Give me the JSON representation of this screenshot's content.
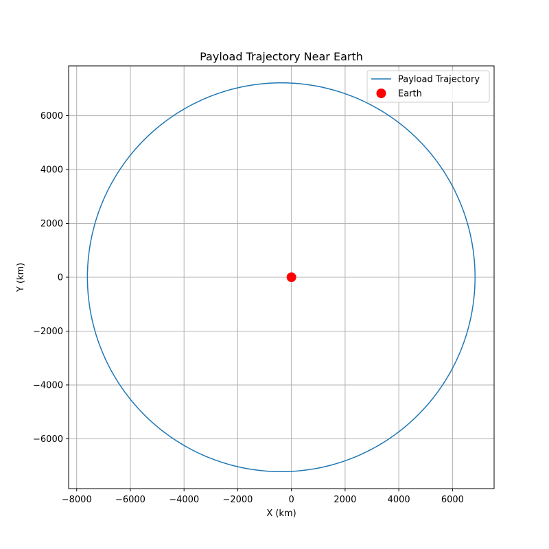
{
  "chart_data": {
    "type": "line",
    "title": "Payload Trajectory Near Earth",
    "xlabel": "X (km)",
    "ylabel": "Y (km)",
    "xlim": [
      -8300,
      7550
    ],
    "ylim": [
      -7850,
      7850
    ],
    "xticks": [
      -8000,
      -6000,
      -4000,
      -2000,
      0,
      2000,
      4000,
      6000
    ],
    "yticks": [
      -6000,
      -4000,
      -2000,
      0,
      2000,
      4000,
      6000
    ],
    "grid": true,
    "legend_position": "top-right",
    "series": [
      {
        "name": "Payload Trajectory",
        "type": "line",
        "color": "#1f77b4",
        "orbit": {
          "center_x": -380,
          "center_y": 0,
          "semi_major_x": 7220,
          "semi_minor_y": 7220
        }
      },
      {
        "name": "Earth",
        "type": "scatter",
        "color": "#ff0000",
        "x": [
          0
        ],
        "y": [
          0
        ]
      }
    ]
  }
}
